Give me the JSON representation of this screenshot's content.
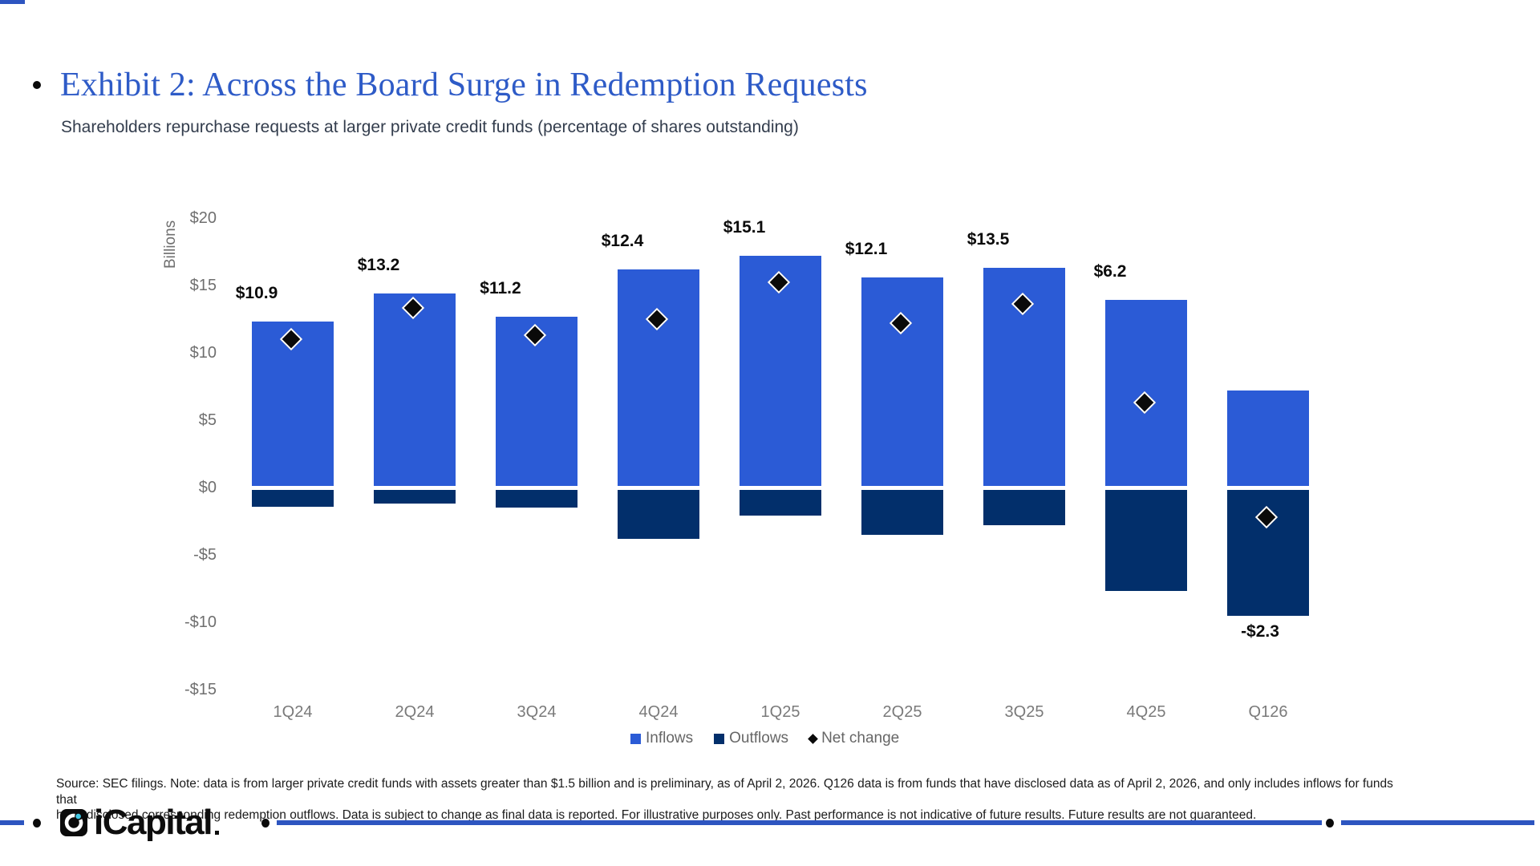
{
  "header": {
    "title": "Exhibit 2: Across the Board Surge in Redemption Requests",
    "subtitle": "Shareholders repurchase requests at larger private credit funds (percentage of shares outstanding)"
  },
  "chart_data": {
    "type": "bar",
    "subtype": "stacked-positive-negative-with-net-markers",
    "categories": [
      "1Q24",
      "2Q24",
      "3Q24",
      "4Q24",
      "1Q25",
      "2Q25",
      "3Q25",
      "4Q25",
      "Q126"
    ],
    "series": [
      {
        "name": "Inflows",
        "values": [
          12.3,
          14.4,
          12.7,
          16.2,
          17.2,
          15.6,
          16.3,
          13.9,
          7.2
        ]
      },
      {
        "name": "Outflows",
        "values": [
          -1.4,
          -1.2,
          -1.5,
          -3.8,
          -2.1,
          -3.5,
          -2.8,
          -7.7,
          -9.5
        ]
      },
      {
        "name": "Net change",
        "values": [
          10.9,
          13.2,
          11.2,
          12.4,
          15.1,
          12.1,
          13.5,
          6.2,
          -2.3
        ]
      }
    ],
    "net_labels": [
      "$10.9",
      "$13.2",
      "$11.2",
      "$12.4",
      "$15.1",
      "$12.1",
      "$13.5",
      "$6.2",
      "-$2.3"
    ],
    "ylabel": "Billions",
    "xlabel": "",
    "ylim": [
      -15,
      20
    ],
    "y_ticks": [
      20,
      15,
      10,
      5,
      0,
      -5,
      -10,
      -15
    ],
    "y_tick_labels": [
      "$20",
      "$15",
      "$10",
      "$5",
      "$0",
      "-$5",
      "-$10",
      "-$15"
    ],
    "grid": false,
    "legend_position": "bottom",
    "legend": [
      {
        "label": "Inflows",
        "marker": "square",
        "color": "#2B5BD6"
      },
      {
        "label": "Outflows",
        "marker": "square",
        "color": "#022F6B"
      },
      {
        "label": "Net change",
        "marker": "diamond",
        "color": "#0A0A0A"
      }
    ]
  },
  "footnote": {
    "lines": [
      "Source: SEC filings. Note: data is from larger private credit funds with assets greater than $1.5 billion and is preliminary, as of April 2, 2026. Q126 data is from funds that have disclosed data as of April 2, 2026, and only includes inflows for funds that",
      "have disclosed corresponding redemption outflows. Data is subject to change as final data is reported. For illustrative purposes only. Past performance is not indicative of future results. Future results are not guaranteed."
    ]
  },
  "footer": {
    "logo_text": "iCapital"
  },
  "colors": {
    "title_blue": "#2E5BC7",
    "inflow_blue": "#2B5BD6",
    "outflow_navy": "#022F6B",
    "net_marker_black": "#0A0A0A",
    "accent_line_blue": "#2D55C0",
    "axis_gray": "#6F6F6F",
    "logo_accent_cyan": "#41C7E2"
  }
}
